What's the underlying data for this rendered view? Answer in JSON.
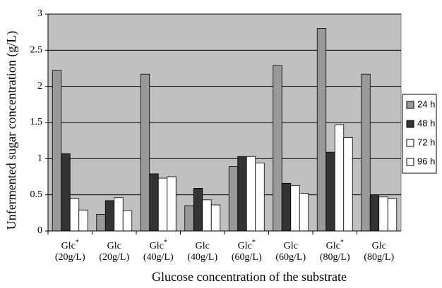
{
  "chart_data": {
    "type": "bar",
    "x_label": "Glucose concentration of the substrate",
    "y_label": "Unfermented sugar concentration (g/L)",
    "categories": [
      "Glc* (20g/L)",
      "Glc (20g/L)",
      "Glc* (40g/L)",
      "Glc (40g/L)",
      "Glc* (60g/L)",
      "Glc (60g/L)",
      "Glc* (80g/L)",
      "Glc (80g/L)"
    ],
    "series": [
      {
        "name": "24 h",
        "color": "#999999",
        "values": [
          2.22,
          0.23,
          2.17,
          0.35,
          0.89,
          2.29,
          2.8,
          2.17
        ]
      },
      {
        "name": "48 h",
        "color": "#333333",
        "values": [
          1.07,
          0.42,
          0.79,
          0.59,
          1.03,
          0.66,
          1.09,
          0.49
        ]
      },
      {
        "name": "72 h",
        "color": "#ffffff",
        "values": [
          0.45,
          0.46,
          0.73,
          0.43,
          1.03,
          0.63,
          1.47,
          0.47
        ]
      },
      {
        "name": "96 h",
        "color": "#ffffff",
        "values": [
          0.29,
          0.28,
          0.75,
          0.36,
          0.94,
          0.52,
          1.29,
          0.45
        ]
      }
    ],
    "ylim": [
      0,
      3
    ],
    "yticks": [
      0,
      0.5,
      1,
      1.5,
      2,
      2.5,
      3
    ],
    "grid": true,
    "legend": "right",
    "plot_background": "#c0c0c0"
  }
}
